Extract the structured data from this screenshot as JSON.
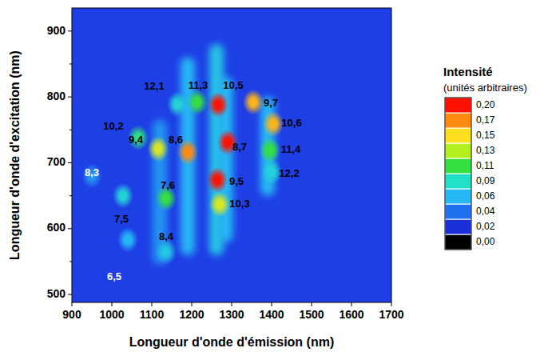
{
  "chart_data": {
    "type": "heatmap",
    "xlabel": "Longueur d'onde d'émission (nm)",
    "ylabel": "Longueur d'onde d'excitation (nm)",
    "xlim": [
      900,
      1700
    ],
    "ylim": [
      488,
      935
    ],
    "xticks": [
      900,
      1000,
      1100,
      1200,
      1300,
      1400,
      1500,
      1600,
      1700
    ],
    "yticks": [
      500,
      600,
      700,
      800,
      900
    ],
    "peaks": [
      {
        "label": "12,1",
        "x": 1164,
        "y": 789,
        "value": 0.08
      },
      {
        "label": "11,3",
        "x": 1214,
        "y": 792,
        "value": 0.11
      },
      {
        "label": "10,5",
        "x": 1266,
        "y": 788,
        "value": 0.2
      },
      {
        "label": "9,7",
        "x": 1354,
        "y": 792,
        "value": 0.16
      },
      {
        "label": "10,6",
        "x": 1404,
        "y": 759,
        "value": 0.16
      },
      {
        "label": "11,4",
        "x": 1396,
        "y": 719,
        "value": 0.11
      },
      {
        "label": "12,2",
        "x": 1400,
        "y": 686,
        "value": 0.08
      },
      {
        "label": "8,7",
        "x": 1290,
        "y": 731,
        "value": 0.2
      },
      {
        "label": "9,5",
        "x": 1264,
        "y": 674,
        "value": 0.2
      },
      {
        "label": "10,3",
        "x": 1270,
        "y": 637,
        "value": 0.14
      },
      {
        "label": "8,6",
        "x": 1190,
        "y": 716,
        "value": 0.17
      },
      {
        "label": "9,4",
        "x": 1116,
        "y": 721,
        "value": 0.14
      },
      {
        "label": "10,2",
        "x": 1066,
        "y": 738,
        "value": 0.1
      },
      {
        "label": "7,6",
        "x": 1136,
        "y": 646,
        "value": 0.11
      },
      {
        "label": "7,5",
        "x": 1028,
        "y": 650,
        "value": 0.08
      },
      {
        "label": "8,4",
        "x": 1136,
        "y": 565,
        "value": 0.07
      },
      {
        "label": "8,3",
        "x": 950,
        "y": 680,
        "value": 0.05
      },
      {
        "label": "6,5",
        "x": 1040,
        "y": 583,
        "value": 0.06
      }
    ],
    "streaks": [
      {
        "x": 1120,
        "y_from": 546,
        "y_to": 765,
        "value": 0.05
      },
      {
        "x": 1190,
        "y_from": 560,
        "y_to": 860,
        "value": 0.06
      },
      {
        "x": 1262,
        "y_from": 560,
        "y_to": 880,
        "value": 0.07
      },
      {
        "x": 1285,
        "y_from": 580,
        "y_to": 830,
        "value": 0.06
      },
      {
        "x": 1390,
        "y_from": 650,
        "y_to": 800,
        "value": 0.06
      }
    ],
    "colorbar": {
      "title": "Intensité",
      "subtitle": "(unités arbitraires)",
      "range": [
        0,
        0.2
      ],
      "ticks": [
        {
          "value": 0,
          "label": "0,00"
        },
        {
          "value": 0.02,
          "label": "0,02"
        },
        {
          "value": 0.04,
          "label": "0,04"
        },
        {
          "value": 0.06,
          "label": "0,06"
        },
        {
          "value": 0.09,
          "label": "0,09"
        },
        {
          "value": 0.11,
          "label": "0,11"
        },
        {
          "value": 0.13,
          "label": "0,13"
        },
        {
          "value": 0.15,
          "label": "0,15"
        },
        {
          "value": 0.17,
          "label": "0,17"
        },
        {
          "value": 0.2,
          "label": "0,20"
        }
      ],
      "colors": [
        "#000000",
        "#1a2fd8",
        "#2070ee",
        "#26b8f4",
        "#22e0c8",
        "#34e040",
        "#b4f020",
        "#ffe020",
        "#ff8a10",
        "#ff1000"
      ]
    }
  }
}
